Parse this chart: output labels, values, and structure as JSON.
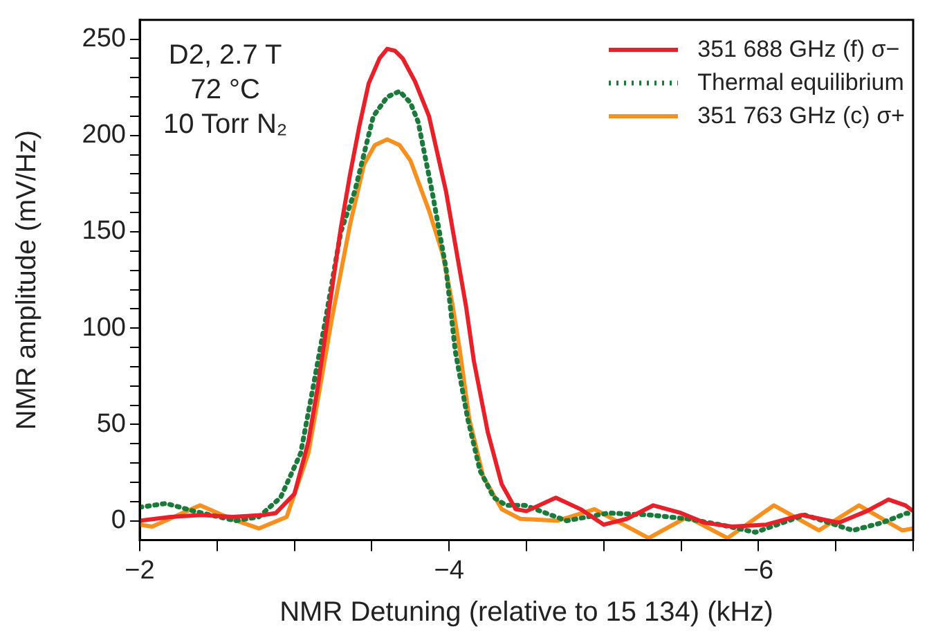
{
  "chart_data": {
    "type": "line",
    "xlabel": "NMR Detuning (relative to 15 134) (kHz)",
    "ylabel": "NMR amplitude (mV/Hz)",
    "annotations": [
      "D2, 2.7 T",
      "72 °C",
      "10 Torr N₂"
    ],
    "xlim": [
      -2,
      -7
    ],
    "xticks": [
      {
        "value": -2,
        "label": "−2"
      },
      {
        "value": -2.5,
        "label": null
      },
      {
        "value": -3,
        "label": null
      },
      {
        "value": -3.5,
        "label": null
      },
      {
        "value": -4,
        "label": "−4"
      },
      {
        "value": -4.5,
        "label": null
      },
      {
        "value": -5,
        "label": null
      },
      {
        "value": -5.5,
        "label": null
      },
      {
        "value": -6,
        "label": "−6"
      },
      {
        "value": -6.5,
        "label": null
      },
      {
        "value": -7,
        "label": null
      }
    ],
    "ylim": [
      -10,
      260
    ],
    "yticks": [
      0,
      {
        "value": 10,
        "label": null
      },
      {
        "value": 20,
        "label": null
      },
      {
        "value": 30,
        "label": null
      },
      {
        "value": 40,
        "label": null
      },
      50,
      {
        "value": 60,
        "label": null
      },
      {
        "value": 70,
        "label": null
      },
      {
        "value": 80,
        "label": null
      },
      {
        "value": 90,
        "label": null
      },
      100,
      {
        "value": 110,
        "label": null
      },
      {
        "value": 120,
        "label": null
      },
      {
        "value": 130,
        "label": null
      },
      {
        "value": 140,
        "label": null
      },
      150,
      {
        "value": 160,
        "label": null
      },
      {
        "value": 170,
        "label": null
      },
      {
        "value": 180,
        "label": null
      },
      {
        "value": 190,
        "label": null
      },
      200,
      {
        "value": 210,
        "label": null
      },
      {
        "value": 220,
        "label": null
      },
      {
        "value": 230,
        "label": null
      },
      {
        "value": 240,
        "label": null
      },
      250
    ],
    "grid": false,
    "legend": "top right",
    "marker": "none",
    "series": [
      {
        "name": "351 688 GHz (f)  σ−",
        "color": "#e8202a",
        "line_style": "solid",
        "x": [
          -2.0,
          -2.2,
          -2.4,
          -2.6,
          -2.8,
          -2.88,
          -3.0,
          -3.09,
          -3.15,
          -3.3,
          -3.36,
          -3.42,
          -3.48,
          -3.55,
          -3.6,
          -3.65,
          -3.7,
          -3.78,
          -3.87,
          -3.98,
          -4.11,
          -4.16,
          -4.25,
          -4.34,
          -4.43,
          -4.5,
          -4.69,
          -4.85,
          -5.0,
          -5.15,
          -5.32,
          -5.5,
          -5.65,
          -5.83,
          -6.05,
          -6.28,
          -6.52,
          -6.7,
          -6.84,
          -6.95,
          -7.0
        ],
        "values": [
          0,
          2,
          3,
          2,
          3,
          4,
          14,
          41,
          69,
          152,
          180,
          205,
          227,
          240,
          245,
          244,
          240,
          228,
          210,
          171,
          111,
          83,
          46,
          19,
          6,
          5,
          12,
          6,
          -2,
          1,
          8,
          4,
          -1,
          -3,
          -2,
          3,
          -1,
          5,
          11,
          8,
          5
        ]
      },
      {
        "name": "Thermal equilibrium",
        "color": "#1a7a3c",
        "line_style": "dotted",
        "x": [
          -2.0,
          -2.17,
          -2.35,
          -2.62,
          -2.77,
          -2.91,
          -3.04,
          -3.12,
          -3.2,
          -3.3,
          -3.39,
          -3.51,
          -3.6,
          -3.68,
          -3.75,
          -3.8,
          -3.89,
          -3.98,
          -4.04,
          -4.12,
          -4.2,
          -4.29,
          -4.37,
          -4.49,
          -4.76,
          -5.03,
          -5.3,
          -5.54,
          -5.75,
          -5.98,
          -6.3,
          -6.61,
          -6.8,
          -6.96,
          -7.0
        ],
        "values": [
          7,
          9,
          5,
          0,
          2,
          12,
          35,
          69,
          104,
          150,
          171,
          210,
          220,
          223,
          217,
          207,
          171,
          131,
          88,
          53,
          26,
          12,
          8,
          8,
          0,
          4,
          3,
          1,
          -2,
          -6,
          3,
          -5,
          -1,
          4,
          3
        ]
      },
      {
        "name": "351 763 GHz (c)  σ+",
        "color": "#f7901e",
        "line_style": "solid",
        "x": [
          -2.0,
          -2.08,
          -2.39,
          -2.59,
          -2.77,
          -2.95,
          -3.09,
          -3.18,
          -3.24,
          -3.36,
          -3.45,
          -3.52,
          -3.6,
          -3.68,
          -3.75,
          -3.87,
          -3.96,
          -4.02,
          -4.07,
          -4.13,
          -4.22,
          -4.34,
          -4.46,
          -4.7,
          -4.94,
          -5.29,
          -5.54,
          -5.8,
          -6.1,
          -6.39,
          -6.65,
          -6.93,
          -7.0
        ],
        "values": [
          -2,
          -3,
          8,
          1,
          -4,
          2,
          35,
          76,
          104,
          154,
          185,
          195,
          198,
          195,
          187,
          161,
          138,
          113,
          88,
          53,
          23,
          6,
          1,
          0,
          6,
          -9,
          2,
          -9,
          8,
          -5,
          8,
          -5,
          -4
        ]
      }
    ]
  }
}
